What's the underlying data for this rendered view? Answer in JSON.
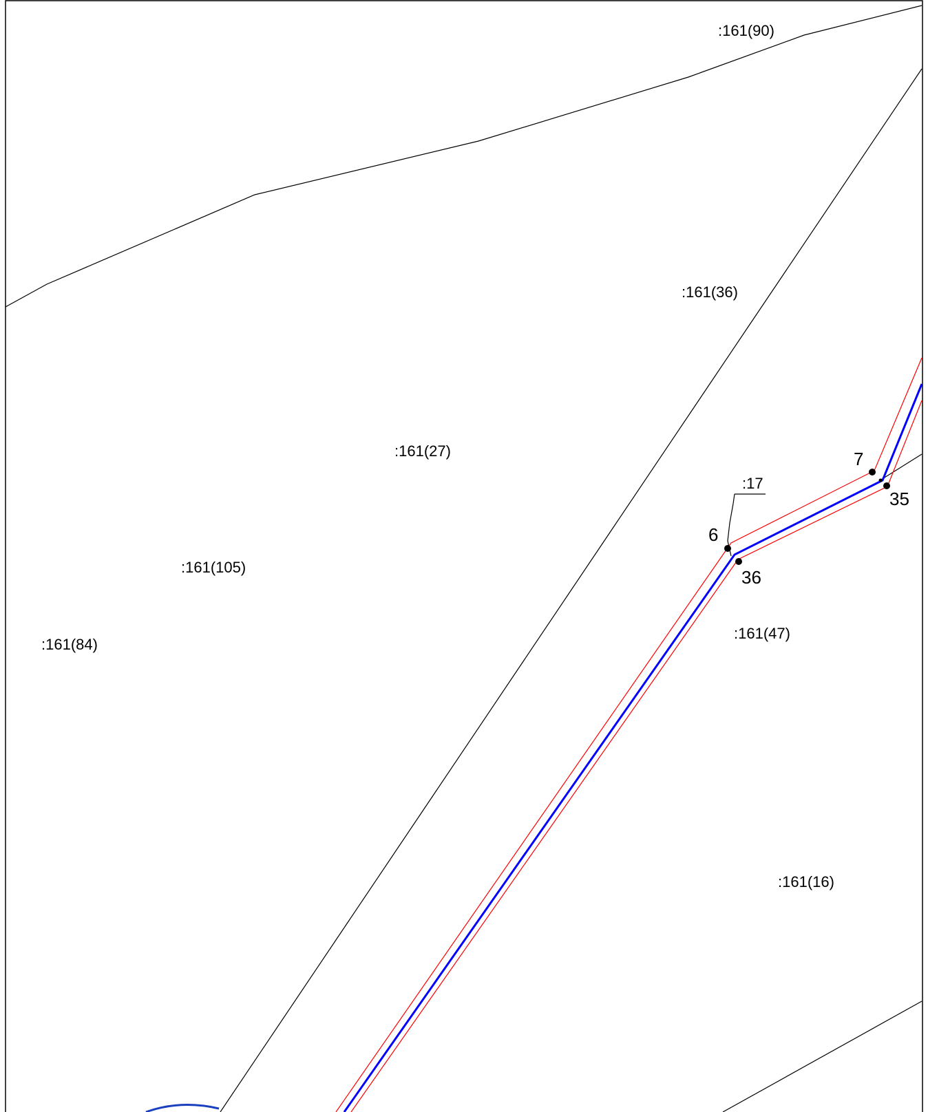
{
  "parcels": {
    "p90": ":161(90)",
    "p36": ":161(36)",
    "p27": ":161(27)",
    "p105": ":161(105)",
    "p84": ":161(84)",
    "p47": ":161(47)",
    "p16": ":161(16)",
    "p17": ":17"
  },
  "points": {
    "pt7": "7",
    "pt35": "35",
    "pt6": "6",
    "pt36": "36"
  },
  "colors": {
    "boundary": "#000000",
    "zone": "#ff0000",
    "axis": "#0000ff"
  }
}
